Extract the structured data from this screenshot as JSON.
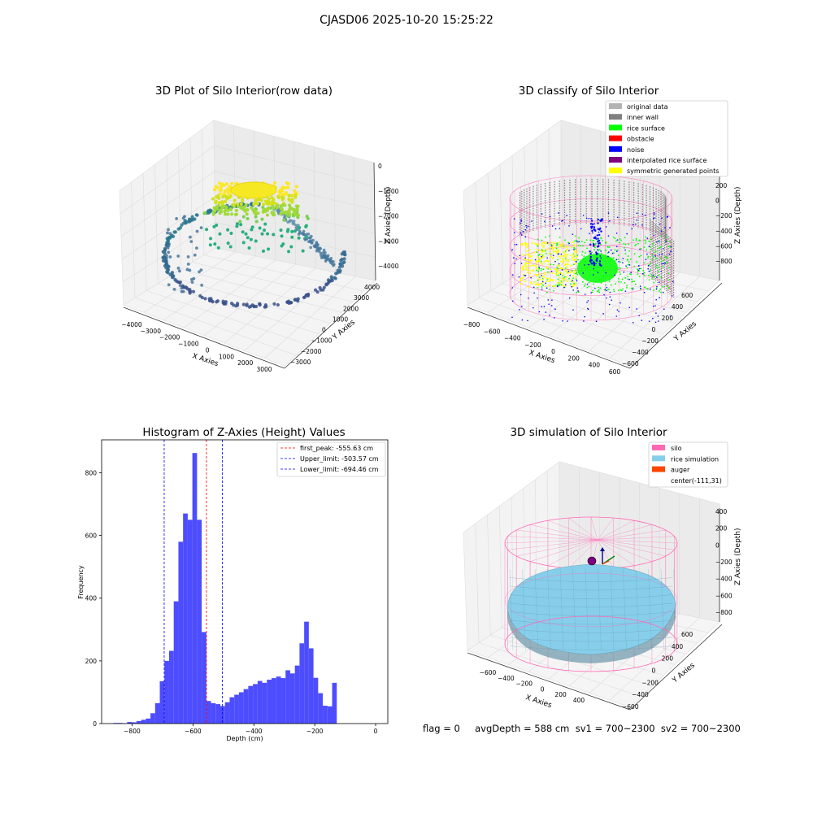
{
  "figure": {
    "suptitle": "CJASD06 2025-10-20 15:25:22",
    "footer": "flag = 0     avgDepth = 588 cm  sv1 = 700~2300  sv2 = 700~2300"
  },
  "colors": {
    "original_data": "#b3b3b3",
    "inner_wall": "#808080",
    "rice_surface": "#00ff00",
    "obstacle": "#ff0000",
    "noise": "#0000ff",
    "interpolated_rice_surface": "#800080",
    "symmetric_generated_points": "#ffff00",
    "histogram_bars": "#4d4dff",
    "silo": "#ff69b4",
    "rice_simulation": "#87ceeb",
    "auger": "#ff4500"
  },
  "chart_data": [
    {
      "type": "scatter",
      "projection": "3d",
      "title": "3D Plot of Silo Interior(row data)",
      "xlabel": "X Axies",
      "ylabel": "Y Axies",
      "zlabel": "Z Axies (Depth)",
      "xticks": [
        -4000,
        -3000,
        -2000,
        -1000,
        0,
        1000,
        2000,
        3000
      ],
      "yticks": [
        -3000,
        -2000,
        -1000,
        0,
        1000,
        2000,
        3000,
        4000
      ],
      "zticks": [
        0,
        -1000,
        -2000,
        -3000,
        -4000
      ],
      "colormap": "viridis"
    },
    {
      "type": "scatter",
      "projection": "3d",
      "title": "3D classify of Silo Interior",
      "xlabel": "X Axies",
      "ylabel": "Y Axies",
      "zlabel": "Z Axies (Depth)",
      "xticks": [
        -800,
        -600,
        -400,
        -200,
        0,
        200,
        400,
        600
      ],
      "yticks": [
        -600,
        -400,
        -200,
        0,
        200,
        400,
        600
      ],
      "zticks": [
        200,
        0,
        -200,
        -400,
        -600,
        -800
      ],
      "legend_position": "top-right",
      "legend": [
        "original data",
        "inner wall",
        "rice surface",
        "obstacle",
        "noise",
        "interpolated rice surface",
        "symmetric generated points"
      ]
    },
    {
      "type": "bar",
      "title": "Histogram of Z-Axies (Height) Values",
      "xlabel": "Depth (cm)",
      "ylabel": "Frequency",
      "xlim": [
        -900,
        40
      ],
      "ylim": [
        0,
        905
      ],
      "xticks": [
        -800,
        -600,
        -400,
        -200,
        0
      ],
      "yticks": [
        0,
        200,
        400,
        600,
        800
      ],
      "bin_width": 15.3,
      "bin_starts": [
        -862,
        -846.7,
        -831.4,
        -816.1,
        -800.8,
        -785.5,
        -770.2,
        -754.9,
        -739.6,
        -724.3,
        -709,
        -693.7,
        -678.4,
        -663.1,
        -647.8,
        -632.5,
        -617.2,
        -601.9,
        -586.6,
        -571.3,
        -556,
        -540.7,
        -525.4,
        -510.1,
        -494.8,
        -479.5,
        -464.2,
        -448.9,
        -433.6,
        -418.3,
        -403,
        -387.7,
        -372.4,
        -357.1,
        -341.8,
        -326.5,
        -311.2,
        -295.9,
        -280.6,
        -265.3,
        -250,
        -234.7,
        -219.4,
        -204.1,
        -188.8,
        -173.5,
        -158.2,
        -142.9,
        -127.6,
        -112.3,
        -97,
        -81.7,
        -66.4,
        -51.1,
        -35.8,
        -20.5,
        -5.2
      ],
      "values": [
        2,
        2,
        1,
        5,
        4,
        8,
        12,
        16,
        33,
        65,
        135,
        200,
        232,
        390,
        580,
        670,
        650,
        863,
        650,
        292,
        72,
        65,
        62,
        56,
        68,
        84,
        92,
        100,
        110,
        120,
        126,
        136,
        130,
        140,
        145,
        150,
        145,
        170,
        160,
        185,
        256,
        325,
        240,
        146,
        97,
        57,
        55,
        130,
        0,
        0,
        0,
        0,
        0,
        0,
        0,
        0,
        0
      ],
      "lines": [
        {
          "label": "first_peak: -555.63 cm",
          "x": -555.63,
          "color": "#ff0000"
        },
        {
          "label": "Upper_limit: -503.57 cm",
          "x": -503.57,
          "color": "#0000ff"
        },
        {
          "label": "Lower_limit: -694.46 cm",
          "x": -694.46,
          "color": "#0000ff"
        }
      ],
      "legend_position": "top-right"
    },
    {
      "type": "surface",
      "projection": "3d",
      "title": "3D simulation of Silo Interior",
      "xlabel": "X Axies",
      "ylabel": "Y Axies",
      "zlabel": "Z Axies (Depth)",
      "xticks": [
        -600,
        -400,
        -200,
        0,
        200,
        400
      ],
      "yticks": [
        -600,
        -400,
        -200,
        0,
        200,
        400,
        600
      ],
      "zticks": [
        400,
        200,
        0,
        -200,
        -400,
        -600,
        -800
      ],
      "legend_position": "top-right",
      "legend": [
        "silo",
        "rice simulation",
        "auger",
        "center(-111,31)"
      ]
    }
  ]
}
